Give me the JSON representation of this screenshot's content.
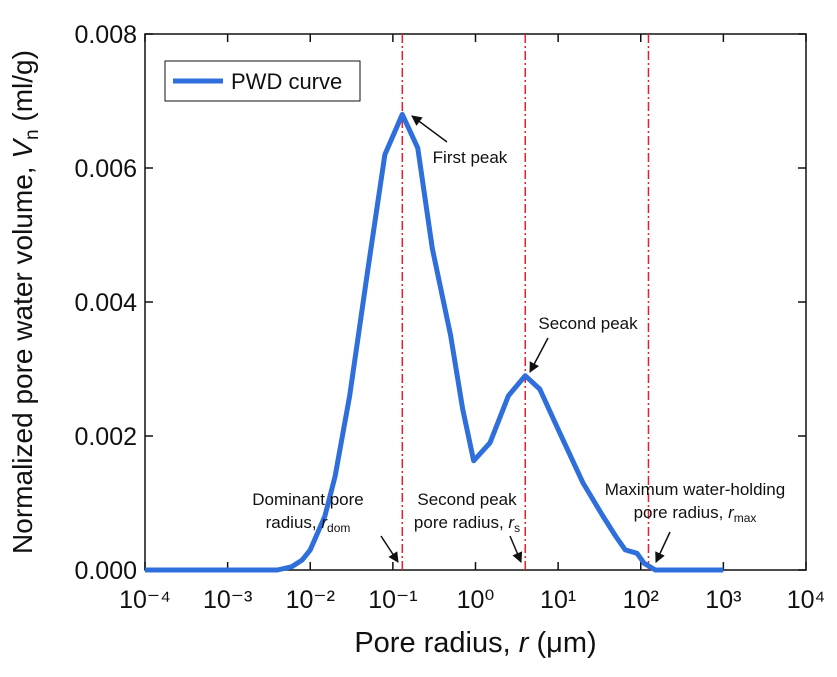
{
  "chart_data": {
    "type": "line",
    "x_label": {
      "text": "Pore radius, ",
      "var": "r",
      "unit": " (μm)"
    },
    "y_label": {
      "text": "Normalized pore water volume, ",
      "var": "V",
      "sub": "n",
      "unit": " (ml/g)"
    },
    "x": [
      0.0001,
      0.001,
      0.004,
      0.006,
      0.008,
      0.01,
      0.015,
      0.02,
      0.03,
      0.05,
      0.08,
      0.13,
      0.2,
      0.3,
      0.5,
      0.7,
      0.95,
      1.5,
      2.5,
      4,
      6,
      10,
      20,
      35,
      50,
      65,
      90,
      110,
      150,
      1000
    ],
    "series": [
      {
        "name": "PWD curve",
        "color": "#2f6fdc",
        "values": [
          0,
          0,
          0,
          5e-05,
          0.00015,
          0.0003,
          0.0008,
          0.0014,
          0.0026,
          0.0045,
          0.0062,
          0.0068,
          0.0063,
          0.0048,
          0.0035,
          0.0024,
          0.00163,
          0.0019,
          0.0026,
          0.0029,
          0.0027,
          0.0021,
          0.0013,
          0.0008,
          0.0005,
          0.0003,
          0.00025,
          0.0001,
          0,
          0
        ]
      }
    ],
    "vlines": [
      0.13,
      4,
      124
    ],
    "vline_color": "#e8202a",
    "log_x": true,
    "xlim": [
      0.0001,
      10000
    ],
    "xticks": [
      {
        "value": 0.0001,
        "label": "10⁻⁴"
      },
      {
        "value": 0.001,
        "label": "10⁻³"
      },
      {
        "value": 0.01,
        "label": "10⁻²"
      },
      {
        "value": 0.1,
        "label": "10⁻¹"
      },
      {
        "value": 1,
        "label": "10⁰"
      },
      {
        "value": 10,
        "label": "10¹"
      },
      {
        "value": 100,
        "label": "10²"
      },
      {
        "value": 1000,
        "label": "10³"
      },
      {
        "value": 10000,
        "label": "10⁴"
      }
    ],
    "ylim": [
      0,
      0.008
    ],
    "yticks": [
      {
        "value": 0,
        "label": "0.000"
      },
      {
        "value": 0.002,
        "label": "0.002"
      },
      {
        "value": 0.004,
        "label": "0.004"
      },
      {
        "value": 0.006,
        "label": "0.006"
      },
      {
        "value": 0.008,
        "label": "0.008"
      }
    ],
    "legend": "upper left",
    "annotations": [
      {
        "text": "First peak"
      },
      {
        "text": "Second peak"
      },
      {
        "line1": "Dominant pore",
        "line2": "radius, ",
        "var": "r",
        "sub": "dom"
      },
      {
        "line1": "Second peak",
        "line2": "pore radius, ",
        "var": "r",
        "sub": "s"
      },
      {
        "line1": "Maximum water-holding",
        "line2": "pore radius, ",
        "var": "r",
        "sub": "max"
      }
    ]
  }
}
